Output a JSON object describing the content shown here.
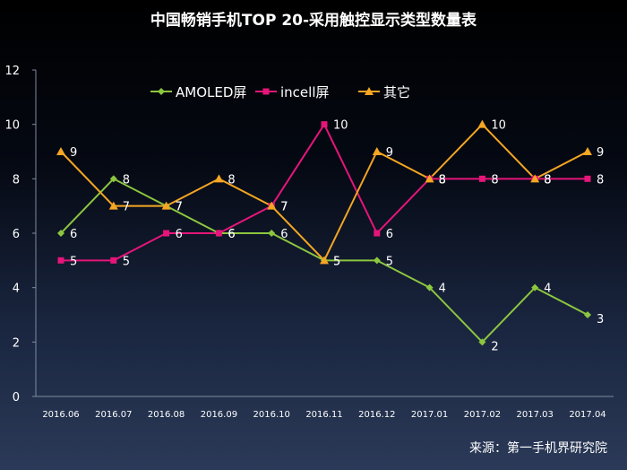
{
  "title": "中国畅销手机TOP 20-采用触控显示类型数量表",
  "source": "来源：第一手机界研究院",
  "chart_data": {
    "type": "line",
    "title": "中国畅销手机TOP 20-采用触控显示类型数量表",
    "xlabel": "",
    "ylabel": "",
    "ylim": [
      0,
      12
    ],
    "yticks": [
      0,
      2,
      4,
      6,
      8,
      10,
      12
    ],
    "grid": false,
    "legend": "top-left",
    "categories": [
      "2016.06",
      "2016.07",
      "2016.08",
      "2016.09",
      "2016.10",
      "2016.11",
      "2016.12",
      "2017.01",
      "2017.02",
      "2017.03",
      "2017.04"
    ],
    "series": [
      {
        "name": "AMOLED屏",
        "color": "#8cc63f",
        "marker": "diamond",
        "values": [
          6,
          8,
          7,
          6,
          6,
          5,
          5,
          4,
          2,
          4,
          3
        ]
      },
      {
        "name": "incell屏",
        "color": "#e6157a",
        "marker": "square",
        "values": [
          5,
          5,
          6,
          6,
          7,
          10,
          6,
          8,
          8,
          8,
          8
        ]
      },
      {
        "name": "其它",
        "color": "#f5a623",
        "marker": "triangle",
        "values": [
          9,
          7,
          7,
          8,
          7,
          5,
          9,
          8,
          10,
          8,
          9
        ]
      }
    ]
  }
}
